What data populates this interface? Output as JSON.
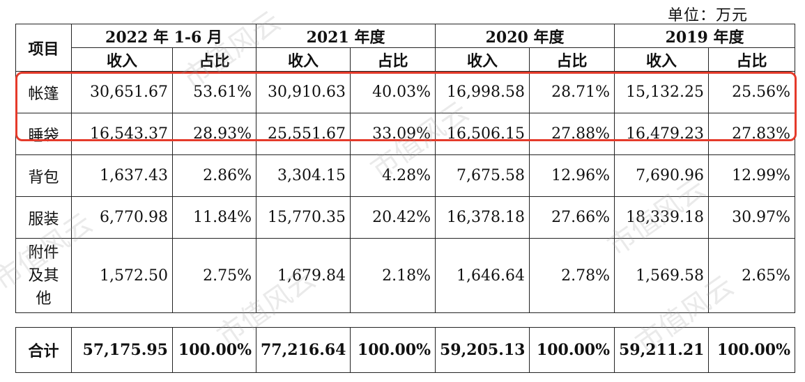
{
  "unit_label": "单位：万元",
  "header": {
    "item": "项目",
    "periods": [
      "2022 年 1-6 月",
      "2021 年度",
      "2020 年度",
      "2019 年度"
    ],
    "income": "收入",
    "share": "占比"
  },
  "rows": [
    {
      "label": "帐篷",
      "values": [
        "30,651.67",
        "53.61%",
        "30,910.63",
        "40.03%",
        "16,998.58",
        "28.71%",
        "15,132.25",
        "25.56%"
      ]
    },
    {
      "label": "睡袋",
      "values": [
        "16,543.37",
        "28.93%",
        "25,551.67",
        "33.09%",
        "16,506.15",
        "27.88%",
        "16,479.23",
        "27.83%"
      ]
    },
    {
      "label": "背包",
      "values": [
        "1,637.43",
        "2.86%",
        "3,304.15",
        "4.28%",
        "7,675.58",
        "12.96%",
        "7,690.96",
        "12.99%"
      ]
    },
    {
      "label": "服装",
      "values": [
        "6,770.98",
        "11.84%",
        "15,770.35",
        "20.42%",
        "16,378.18",
        "27.66%",
        "18,339.18",
        "30.97%"
      ]
    },
    {
      "label_lines": [
        "附件",
        "及其",
        "他"
      ],
      "values": [
        "1,572.50",
        "2.75%",
        "1,679.84",
        "2.18%",
        "1,646.64",
        "2.78%",
        "1,569.58",
        "2.65%"
      ]
    }
  ],
  "total": {
    "label": "合计",
    "values": [
      "57,175.95",
      "100.00%",
      "77,216.64",
      "100.00%",
      "59,205.13",
      "100.00%",
      "59,211.21",
      "100.00%"
    ]
  },
  "watermark": "市值风云",
  "highlight_color": "#e53a2a"
}
